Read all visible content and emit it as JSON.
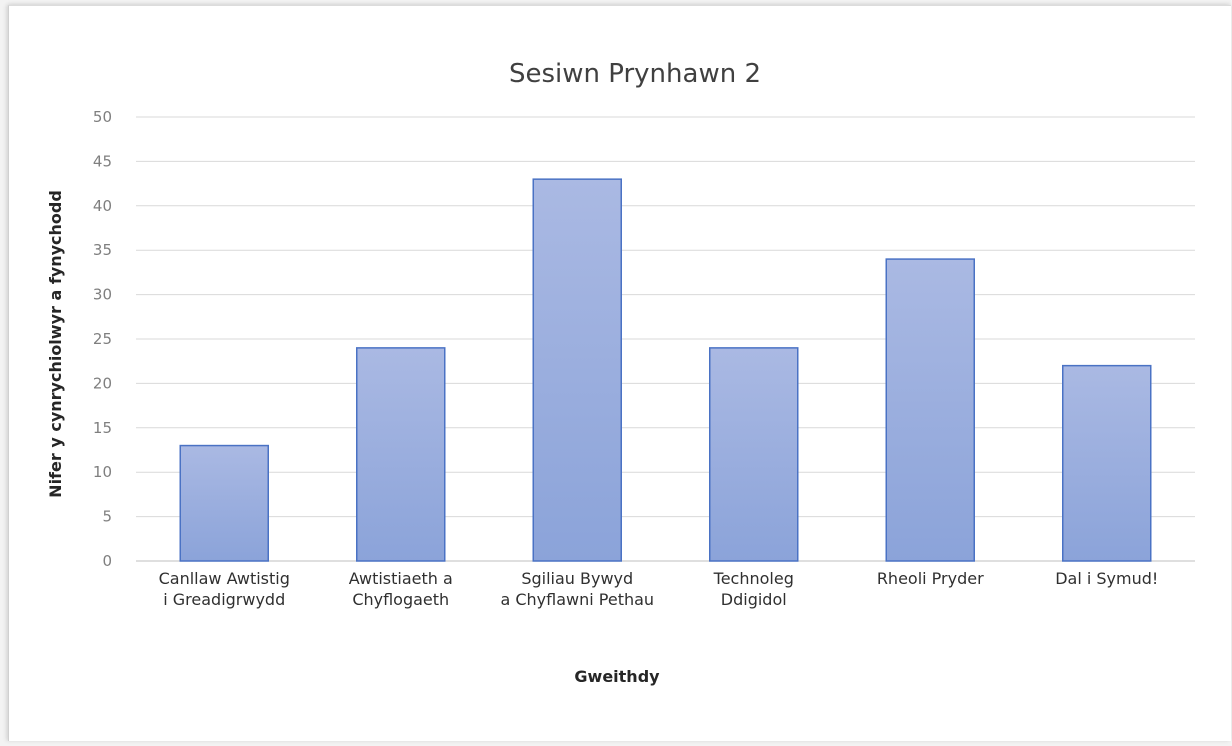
{
  "chart_data": {
    "type": "bar",
    "title": "Sesiwn Prynhawn 2",
    "xlabel": "Gweithdy",
    "ylabel": "Nifer y cynrychiolwyr a fynychodd",
    "ylim": [
      0,
      50
    ],
    "yticks": [
      0,
      5,
      10,
      15,
      20,
      25,
      30,
      35,
      40,
      45,
      50
    ],
    "grid": true,
    "legend": "none",
    "categories": [
      [
        "Canllaw Awtistig",
        "i Greadigrwydd"
      ],
      [
        "Awtistiaeth a",
        "Chyflogaeth"
      ],
      [
        "Sgiliau Bywyd",
        "a Chyflawni Pethau"
      ],
      [
        "Technoleg",
        "Ddigidol"
      ],
      [
        "Rheoli Pryder"
      ],
      [
        "Dal i Symud!"
      ]
    ],
    "values": [
      13,
      24,
      43,
      24,
      34,
      22
    ],
    "colors": {
      "bar_top": "#aab9e3",
      "bar_bottom": "#8ba3d9",
      "bar_border": "#4a72c4",
      "grid": "#d9d9d9"
    }
  }
}
